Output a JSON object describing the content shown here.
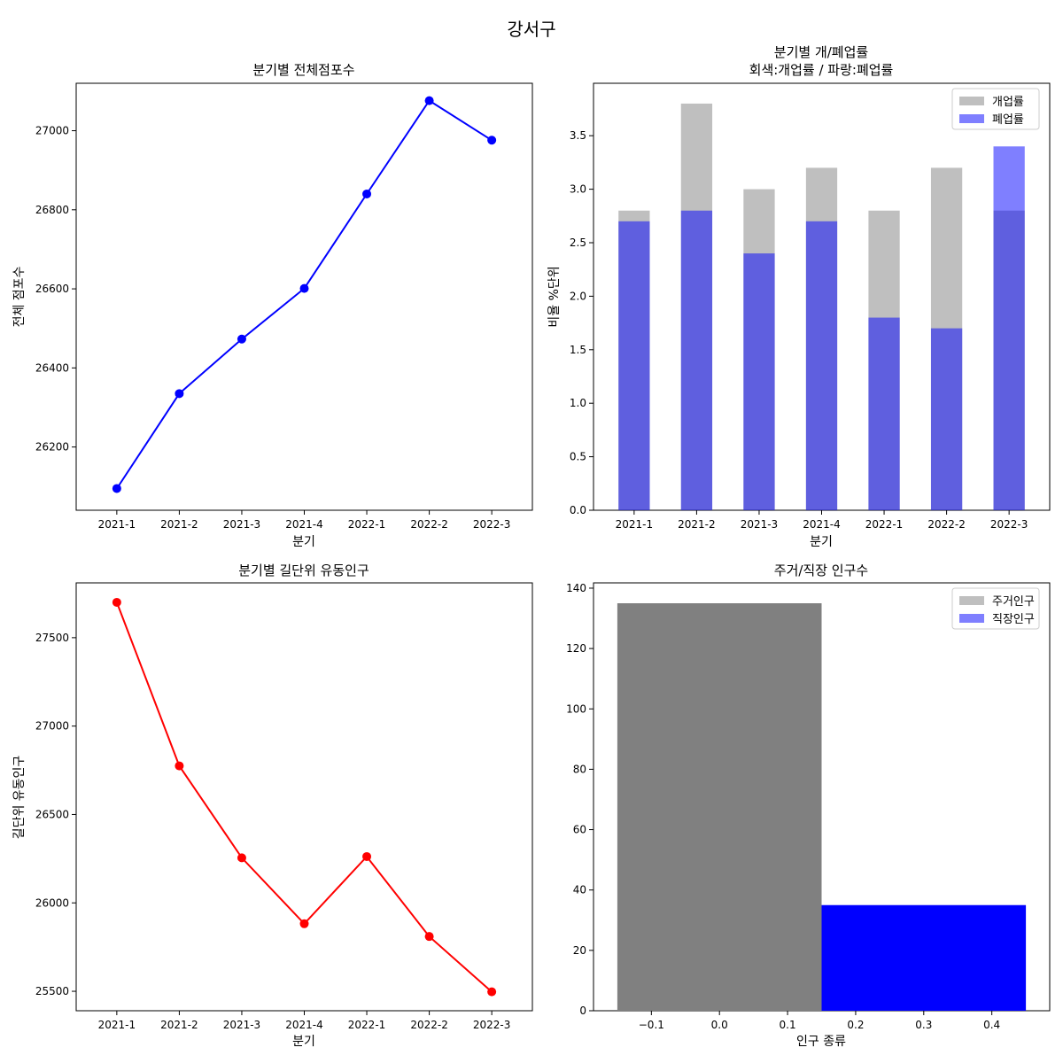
{
  "figure": {
    "suptitle": "강서구"
  },
  "chart_data": [
    {
      "id": "p1",
      "type": "line",
      "title": "분기별 전체점포수",
      "xlabel": "분기",
      "ylabel": "전체 점포수",
      "categories": [
        "2021-1",
        "2021-2",
        "2021-3",
        "2021-4",
        "2022-1",
        "2022-2",
        "2022-3"
      ],
      "series": [
        {
          "color": "#0000ff",
          "marker": "circle",
          "values": [
            26095,
            26335,
            26473,
            26601,
            26840,
            27076,
            26976
          ]
        }
      ],
      "ylim": [
        26040,
        27120
      ],
      "yticks": [
        26200,
        26400,
        26600,
        26800,
        27000
      ],
      "grid": false
    },
    {
      "id": "p2",
      "type": "bar",
      "title": "분기별 개/폐업률",
      "subtitle": "회색:개업률 / 파랑:폐업률",
      "xlabel": "분기",
      "ylabel": "비율 %단위",
      "categories": [
        "2021-1",
        "2021-2",
        "2021-3",
        "2021-4",
        "2022-1",
        "2022-2",
        "2022-3"
      ],
      "series": [
        {
          "name": "개업률",
          "color": "#808080",
          "opacity": 0.5,
          "values": [
            2.8,
            3.8,
            3.0,
            3.2,
            2.8,
            3.2,
            2.8
          ]
        },
        {
          "name": "폐업률",
          "color": "#0000ff",
          "opacity": 0.5,
          "values": [
            2.7,
            2.8,
            2.4,
            2.7,
            1.8,
            1.7,
            3.4
          ]
        }
      ],
      "ylim": [
        0,
        3.99
      ],
      "yticks": [
        0.0,
        0.5,
        1.0,
        1.5,
        2.0,
        2.5,
        3.0,
        3.5
      ],
      "legend": "top-right",
      "grid": false
    },
    {
      "id": "p3",
      "type": "line",
      "title": "분기별 길단위 유동인구",
      "xlabel": "분기",
      "ylabel": "길단위 유동인구",
      "categories": [
        "2021-1",
        "2021-2",
        "2021-3",
        "2021-4",
        "2022-1",
        "2022-2",
        "2022-3"
      ],
      "series": [
        {
          "color": "#ff0000",
          "marker": "circle",
          "values": [
            27700,
            26775,
            26255,
            25882,
            26262,
            25810,
            25497
          ]
        }
      ],
      "ylim": [
        25390,
        27810
      ],
      "yticks": [
        25500,
        26000,
        26500,
        27000,
        27500
      ],
      "grid": false
    },
    {
      "id": "p4",
      "type": "bar",
      "title": "주거/직장 인구수",
      "xlabel": "인구 종류",
      "ylabel": "",
      "series": [
        {
          "name": "주거인구",
          "color": "#808080",
          "x": 0.0,
          "width": 0.3,
          "values": [
            135
          ]
        },
        {
          "name": "직장인구",
          "color": "#0000ff",
          "x": 0.3,
          "width": 0.3,
          "values": [
            35
          ]
        }
      ],
      "xlim": [
        -0.185,
        0.485
      ],
      "xticks": [
        "−0.1",
        "0.0",
        "0.1",
        "0.2",
        "0.3",
        "0.4"
      ],
      "ylim": [
        0,
        141.75
      ],
      "yticks": [
        0,
        20,
        40,
        60,
        80,
        100,
        120,
        140
      ],
      "legend": "top-right",
      "grid": false
    }
  ]
}
